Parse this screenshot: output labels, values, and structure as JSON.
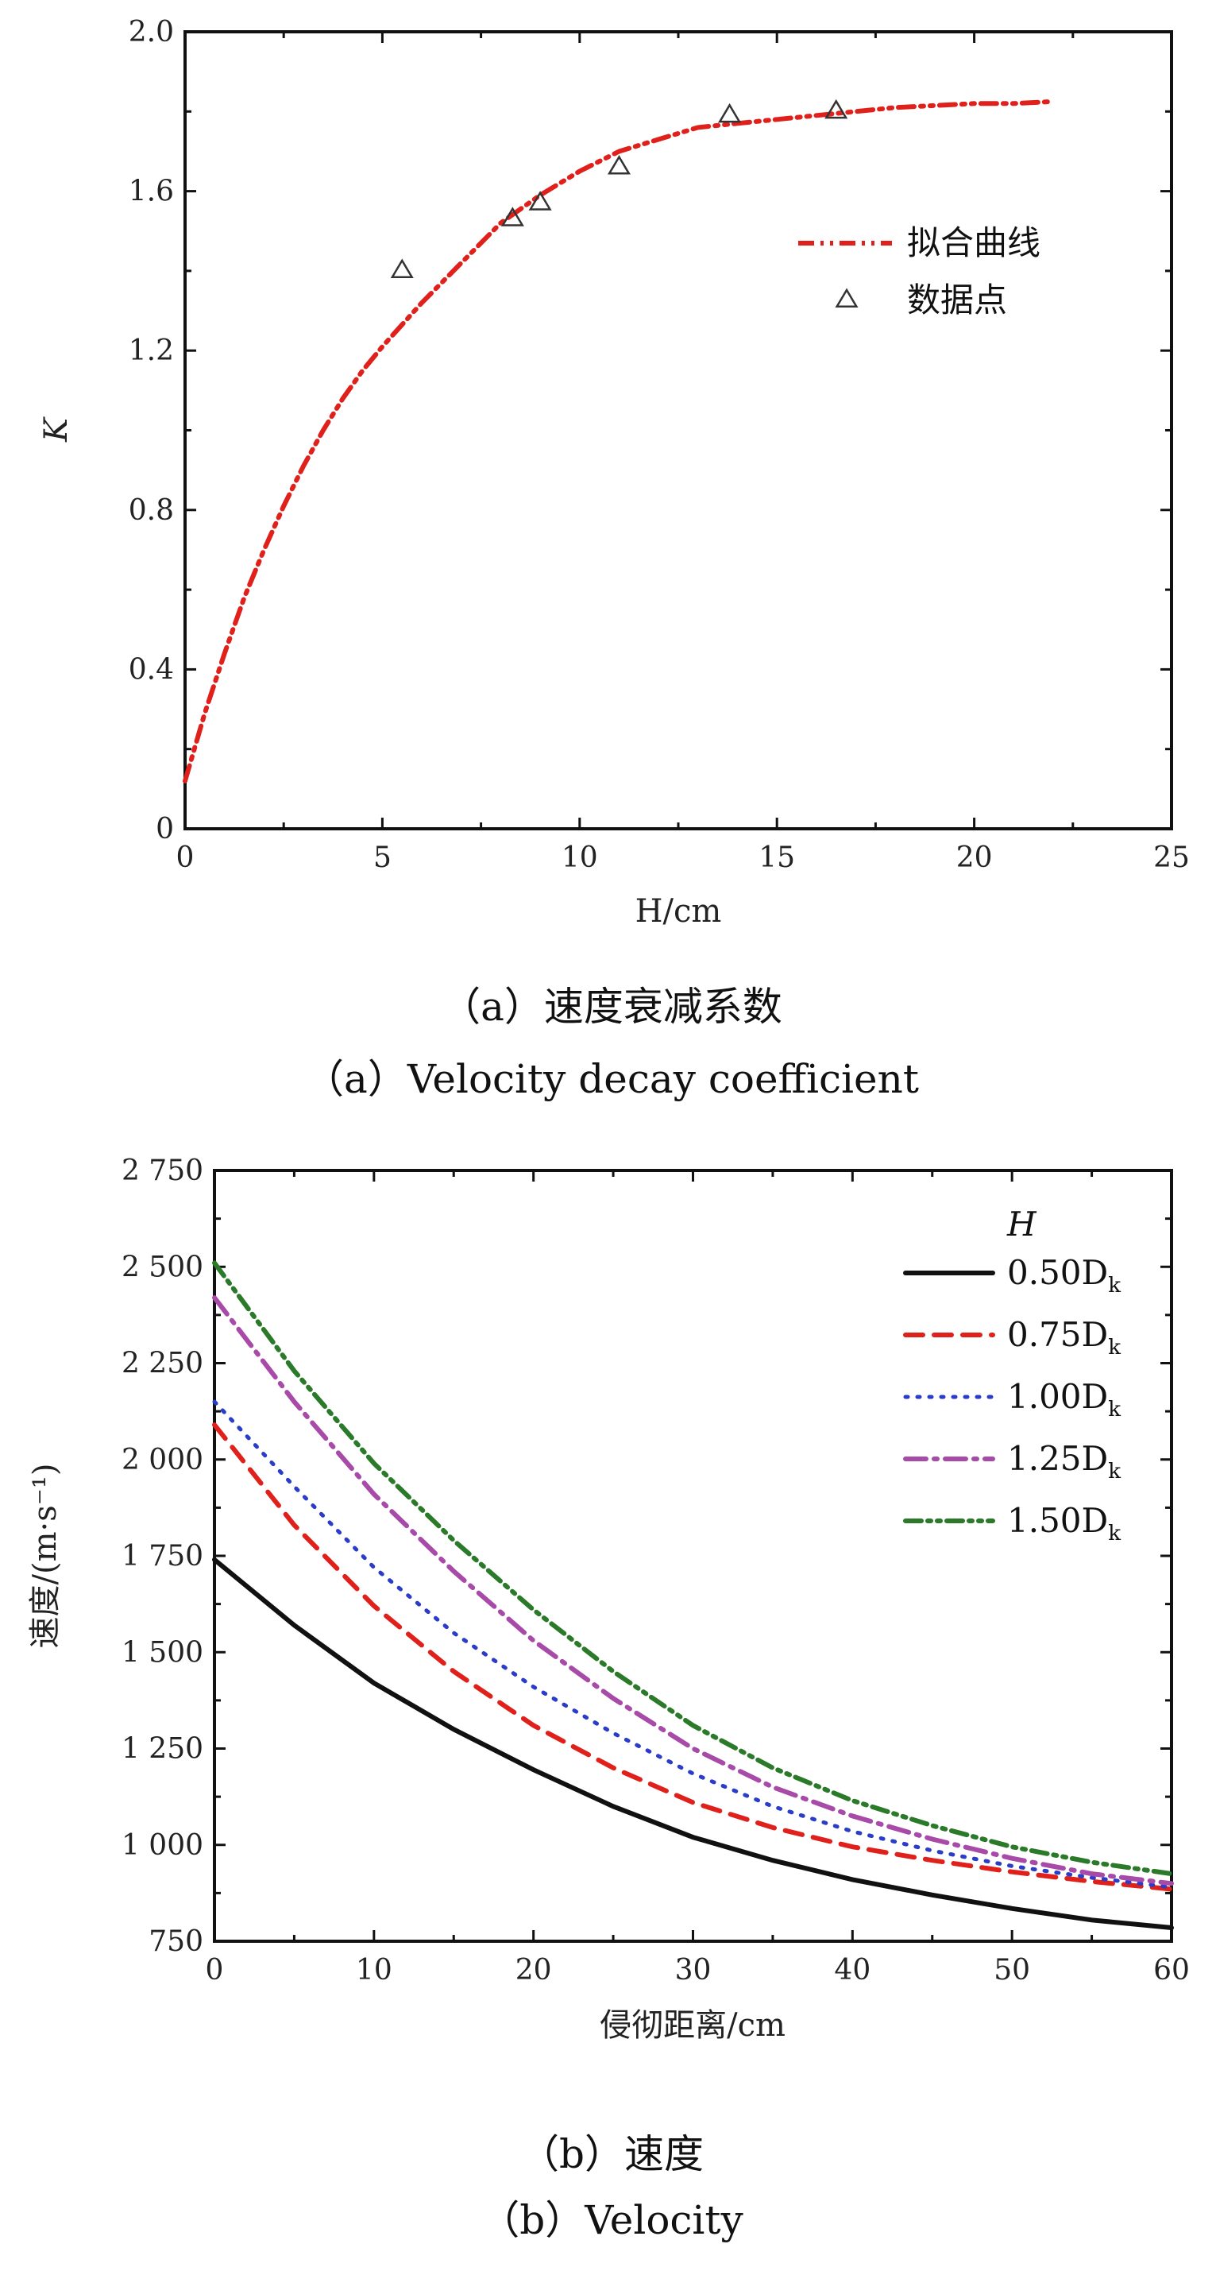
{
  "chart_data": [
    {
      "type": "line",
      "title": "",
      "xlabel": "H/cm",
      "ylabel": "K",
      "xlim": [
        0,
        25
      ],
      "ylim": [
        0,
        2.0
      ],
      "x_ticks": [
        0,
        5,
        10,
        15,
        20,
        25
      ],
      "y_ticks": [
        0,
        0.4,
        0.8,
        1.2,
        1.6,
        2.0
      ],
      "x_tick_labels": [
        "0",
        "5",
        "10",
        "15",
        "20",
        "25"
      ],
      "y_tick_labels": [
        "0",
        "0.4",
        "0.8",
        "1.2",
        "1.6",
        "2.0"
      ],
      "legend": [
        {
          "label": "拟合曲线",
          "style": "dash-dot-dot",
          "color": "#e0201b"
        },
        {
          "label": "数据点",
          "style": "triangle-marker",
          "color": "#333333"
        }
      ],
      "series": [
        {
          "name": "拟合曲线",
          "x": [
            0,
            0.5,
            1,
            1.5,
            2,
            2.5,
            3,
            3.5,
            4,
            4.5,
            5,
            6,
            7,
            8,
            9,
            10,
            11,
            12,
            13,
            14,
            15,
            16,
            17,
            18,
            19,
            20,
            21,
            22
          ],
          "y": [
            0.12,
            0.29,
            0.44,
            0.58,
            0.7,
            0.81,
            0.91,
            1.0,
            1.08,
            1.15,
            1.21,
            1.32,
            1.42,
            1.52,
            1.59,
            1.65,
            1.7,
            1.73,
            1.76,
            1.77,
            1.78,
            1.79,
            1.8,
            1.81,
            1.815,
            1.82,
            1.82,
            1.825
          ]
        },
        {
          "name": "数据点",
          "x": [
            5.5,
            8.3,
            9.0,
            11.0,
            13.8,
            16.5
          ],
          "y": [
            1.4,
            1.53,
            1.57,
            1.66,
            1.79,
            1.8
          ]
        }
      ],
      "caption_cn": "（a）速度衰减系数",
      "caption_en": "（a）Velocity decay coefficient"
    },
    {
      "type": "line",
      "title": "",
      "xlabel": "侵彻距离/cm",
      "ylabel": "速度/(m·s⁻¹)",
      "xlim": [
        0,
        60
      ],
      "ylim": [
        750,
        2750
      ],
      "x_ticks": [
        0,
        10,
        20,
        30,
        40,
        50,
        60
      ],
      "y_ticks": [
        750,
        1000,
        1250,
        1500,
        1750,
        2000,
        2250,
        2500,
        2750
      ],
      "x_tick_labels": [
        "0",
        "10",
        "20",
        "30",
        "40",
        "50",
        "60"
      ],
      "y_tick_labels": [
        "750",
        "1 000",
        "1 250",
        "1 500",
        "1 750",
        "2 000",
        "2 250",
        "2 500",
        "2 750"
      ],
      "legend_title": "H",
      "legend": [
        {
          "label": "0.50D",
          "sub": "k",
          "style": "solid",
          "color": "#111111"
        },
        {
          "label": "0.75D",
          "sub": "k",
          "style": "dash",
          "color": "#e0201b"
        },
        {
          "label": "1.00D",
          "sub": "k",
          "style": "dot",
          "color": "#2a3cc8"
        },
        {
          "label": "1.25D",
          "sub": "k",
          "style": "dash-dot",
          "color": "#a84aa8"
        },
        {
          "label": "1.50D",
          "sub": "k",
          "style": "dash-dot-dot",
          "color": "#2a7a2a"
        }
      ],
      "series": [
        {
          "name": "0.50Dk",
          "x": [
            0,
            5,
            10,
            15,
            20,
            25,
            30,
            35,
            40,
            45,
            50,
            55,
            60
          ],
          "y": [
            1740,
            1570,
            1420,
            1300,
            1195,
            1100,
            1020,
            960,
            910,
            870,
            835,
            805,
            785
          ]
        },
        {
          "name": "0.75Dk",
          "x": [
            0,
            5,
            10,
            15,
            20,
            25,
            30,
            35,
            40,
            45,
            50,
            55,
            60
          ],
          "y": [
            2090,
            1830,
            1620,
            1450,
            1310,
            1200,
            1110,
            1045,
            995,
            960,
            930,
            905,
            885
          ]
        },
        {
          "name": "1.00Dk",
          "x": [
            0,
            5,
            10,
            15,
            20,
            25,
            30,
            35,
            40,
            45,
            50,
            55,
            60
          ],
          "y": [
            2150,
            1930,
            1720,
            1550,
            1410,
            1290,
            1185,
            1100,
            1035,
            985,
            945,
            915,
            890
          ]
        },
        {
          "name": "1.25Dk",
          "x": [
            0,
            5,
            10,
            15,
            20,
            25,
            30,
            35,
            40,
            45,
            50,
            55,
            60
          ],
          "y": [
            2420,
            2150,
            1910,
            1710,
            1530,
            1380,
            1250,
            1150,
            1075,
            1015,
            965,
            925,
            900
          ]
        },
        {
          "name": "1.50Dk",
          "x": [
            0,
            5,
            10,
            15,
            20,
            25,
            30,
            35,
            40,
            45,
            50,
            55,
            60
          ],
          "y": [
            2510,
            2230,
            1990,
            1790,
            1610,
            1450,
            1310,
            1200,
            1115,
            1050,
            995,
            955,
            925
          ]
        }
      ],
      "caption_cn": "（b）速度",
      "caption_en": "（b）Velocity"
    }
  ]
}
